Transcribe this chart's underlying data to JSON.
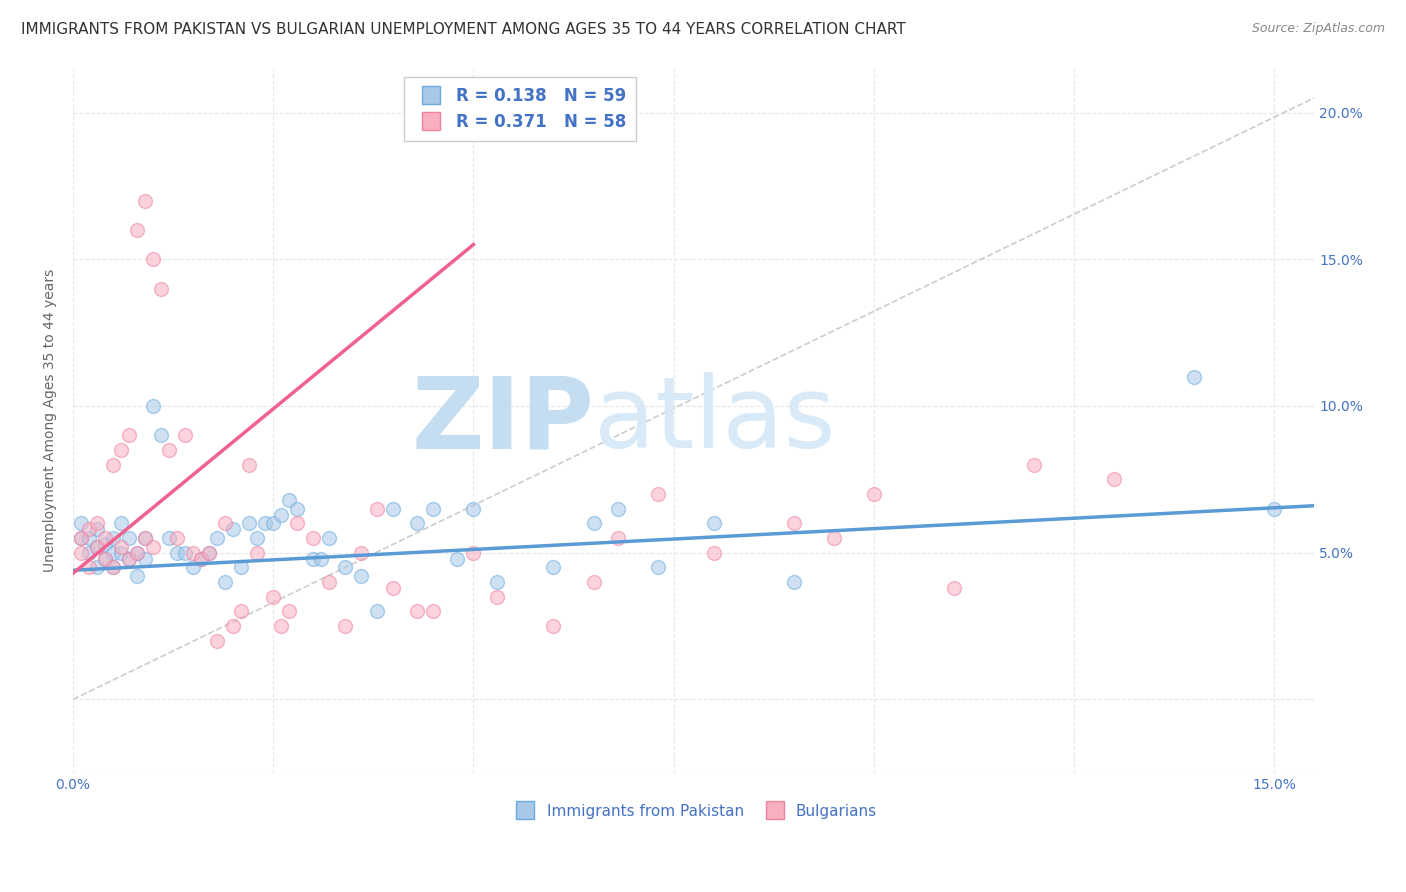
{
  "title": "IMMIGRANTS FROM PAKISTAN VS BULGARIAN UNEMPLOYMENT AMONG AGES 35 TO 44 YEARS CORRELATION CHART",
  "source": "Source: ZipAtlas.com",
  "ylabel": "Unemployment Among Ages 35 to 44 years",
  "xlim": [
    0.0,
    0.155
  ],
  "ylim": [
    -0.025,
    0.215
  ],
  "blue_R": 0.138,
  "blue_N": 59,
  "pink_R": 0.371,
  "pink_N": 58,
  "blue_color": "#a8c8e8",
  "pink_color": "#f8b0c0",
  "blue_line_color": "#5b9bd5",
  "pink_line_color": "#f06090",
  "blue_marker_edge": "#6aacdf",
  "pink_marker_edge": "#f080a0",
  "legend_text_color": "#4472c4",
  "watermark_color": "#ddeef8",
  "blue_scatter_x": [
    0.001,
    0.001,
    0.002,
    0.002,
    0.003,
    0.003,
    0.003,
    0.004,
    0.004,
    0.005,
    0.005,
    0.005,
    0.006,
    0.006,
    0.007,
    0.007,
    0.008,
    0.008,
    0.009,
    0.009,
    0.01,
    0.011,
    0.012,
    0.013,
    0.014,
    0.015,
    0.016,
    0.017,
    0.018,
    0.019,
    0.02,
    0.021,
    0.022,
    0.023,
    0.024,
    0.025,
    0.026,
    0.027,
    0.028,
    0.03,
    0.031,
    0.032,
    0.034,
    0.036,
    0.038,
    0.04,
    0.043,
    0.045,
    0.048,
    0.05,
    0.053,
    0.06,
    0.065,
    0.068,
    0.073,
    0.08,
    0.09,
    0.14,
    0.15
  ],
  "blue_scatter_y": [
    0.055,
    0.06,
    0.05,
    0.055,
    0.045,
    0.052,
    0.058,
    0.048,
    0.053,
    0.05,
    0.055,
    0.045,
    0.05,
    0.06,
    0.048,
    0.055,
    0.042,
    0.05,
    0.048,
    0.055,
    0.1,
    0.09,
    0.055,
    0.05,
    0.05,
    0.045,
    0.048,
    0.05,
    0.055,
    0.04,
    0.058,
    0.045,
    0.06,
    0.055,
    0.06,
    0.06,
    0.063,
    0.068,
    0.065,
    0.048,
    0.048,
    0.055,
    0.045,
    0.042,
    0.03,
    0.065,
    0.06,
    0.065,
    0.048,
    0.065,
    0.04,
    0.045,
    0.06,
    0.065,
    0.045,
    0.06,
    0.04,
    0.11,
    0.065
  ],
  "pink_scatter_x": [
    0.001,
    0.001,
    0.002,
    0.002,
    0.003,
    0.003,
    0.004,
    0.004,
    0.005,
    0.005,
    0.006,
    0.006,
    0.007,
    0.007,
    0.008,
    0.008,
    0.009,
    0.009,
    0.01,
    0.01,
    0.011,
    0.012,
    0.013,
    0.014,
    0.015,
    0.016,
    0.017,
    0.018,
    0.019,
    0.02,
    0.021,
    0.022,
    0.023,
    0.025,
    0.026,
    0.027,
    0.028,
    0.03,
    0.032,
    0.034,
    0.036,
    0.038,
    0.04,
    0.043,
    0.045,
    0.05,
    0.053,
    0.06,
    0.065,
    0.068,
    0.073,
    0.08,
    0.09,
    0.095,
    0.1,
    0.11,
    0.12,
    0.13
  ],
  "pink_scatter_y": [
    0.05,
    0.055,
    0.045,
    0.058,
    0.052,
    0.06,
    0.048,
    0.055,
    0.045,
    0.08,
    0.052,
    0.085,
    0.048,
    0.09,
    0.05,
    0.16,
    0.055,
    0.17,
    0.052,
    0.15,
    0.14,
    0.085,
    0.055,
    0.09,
    0.05,
    0.048,
    0.05,
    0.02,
    0.06,
    0.025,
    0.03,
    0.08,
    0.05,
    0.035,
    0.025,
    0.03,
    0.06,
    0.055,
    0.04,
    0.025,
    0.05,
    0.065,
    0.038,
    0.03,
    0.03,
    0.05,
    0.035,
    0.025,
    0.04,
    0.055,
    0.07,
    0.05,
    0.06,
    0.055,
    0.07,
    0.038,
    0.08,
    0.075
  ],
  "blue_trend_x": [
    0.0,
    0.155
  ],
  "blue_trend_y_start": 0.044,
  "blue_trend_y_end": 0.066,
  "pink_trend_x": [
    0.0,
    0.05
  ],
  "pink_trend_y_start": 0.043,
  "pink_trend_y_end": 0.155,
  "diag_line_x": [
    0.0,
    0.155
  ],
  "diag_line_y": [
    0.0,
    0.205
  ],
  "grid_color": "#e8e8e8",
  "background_color": "#ffffff",
  "title_fontsize": 11,
  "axis_fontsize": 10,
  "tick_fontsize": 10,
  "scatter_size": 100,
  "scatter_alpha": 0.55,
  "trend_linewidth": 2.5
}
